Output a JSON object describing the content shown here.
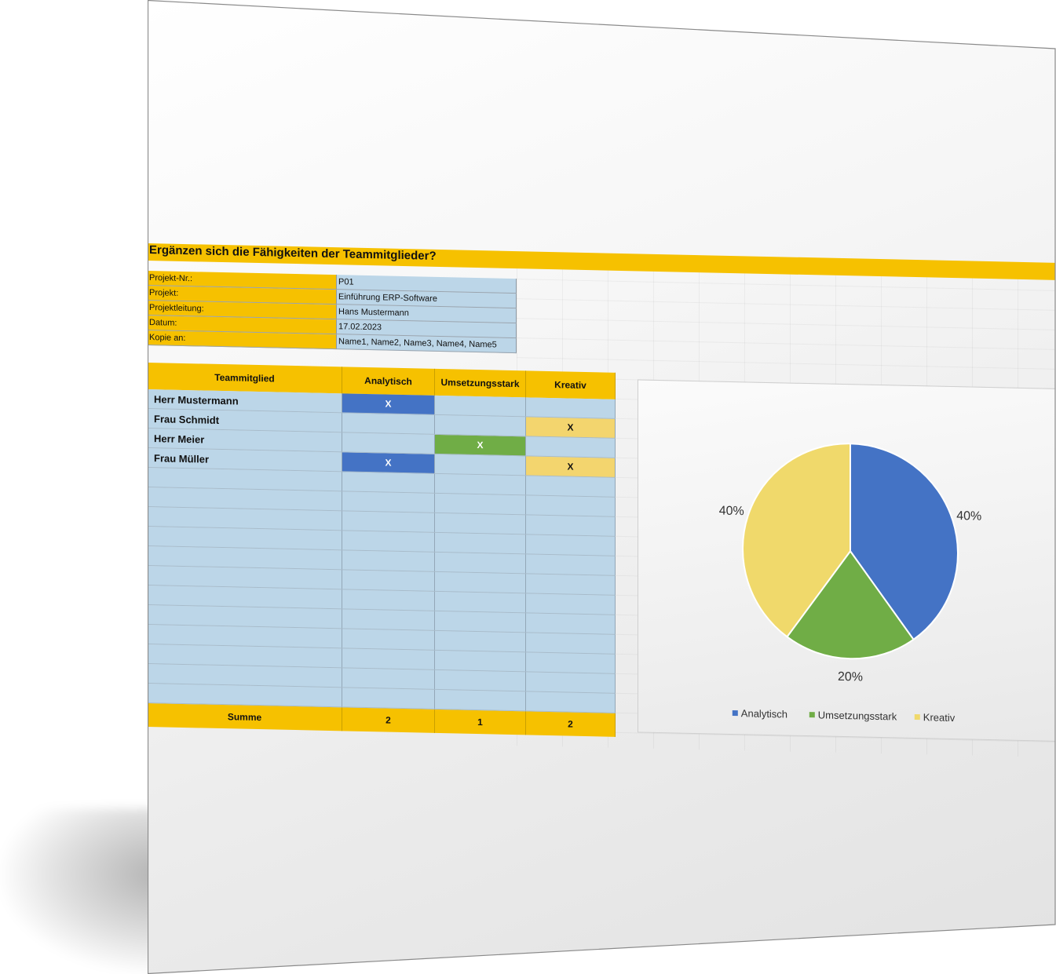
{
  "title": "Ergänzen sich die Fähigkeiten der Teammitglieder?",
  "info": [
    {
      "label": "Projekt-Nr.:",
      "value": "P01"
    },
    {
      "label": "Projekt:",
      "value": "Einführung ERP-Software"
    },
    {
      "label": "Projektleitung:",
      "value": "Hans Mustermann"
    },
    {
      "label": "Datum:",
      "value": "17.02.2023"
    },
    {
      "label": "Kopie an:",
      "value": "Name1, Name2, Name3, Name4, Name5"
    }
  ],
  "table": {
    "headers": [
      "Teammitglied",
      "Analytisch",
      "Umsetzungsstark",
      "Kreativ"
    ],
    "rows": [
      {
        "name": "Herr Mustermann",
        "analytisch": "X",
        "umsetzungsstark": "",
        "kreativ": ""
      },
      {
        "name": "Frau Schmidt",
        "analytisch": "",
        "umsetzungsstark": "",
        "kreativ": "X"
      },
      {
        "name": "Herr Meier",
        "analytisch": "",
        "umsetzungsstark": "X",
        "kreativ": ""
      },
      {
        "name": "Frau Müller",
        "analytisch": "X",
        "umsetzungsstark": "",
        "kreativ": "X"
      }
    ],
    "empty_rows": 12,
    "sum_label": "Summe",
    "sums": [
      "2",
      "1",
      "2"
    ]
  },
  "colors": {
    "accent": "#f6c100",
    "cell_bg": "#bcd6e8",
    "analytisch": "#4473c5",
    "umsetzungsstark": "#70ad46",
    "kreativ": "#f3d56e"
  },
  "chart_data": {
    "type": "pie",
    "categories": [
      "Analytisch",
      "Umsetzungsstark",
      "Kreativ"
    ],
    "values": [
      40,
      20,
      40
    ],
    "labels": [
      "40%",
      "20%",
      "40%"
    ],
    "colors": [
      "#4473c5",
      "#70ad46",
      "#f0d96b"
    ],
    "legend": "bottom"
  }
}
